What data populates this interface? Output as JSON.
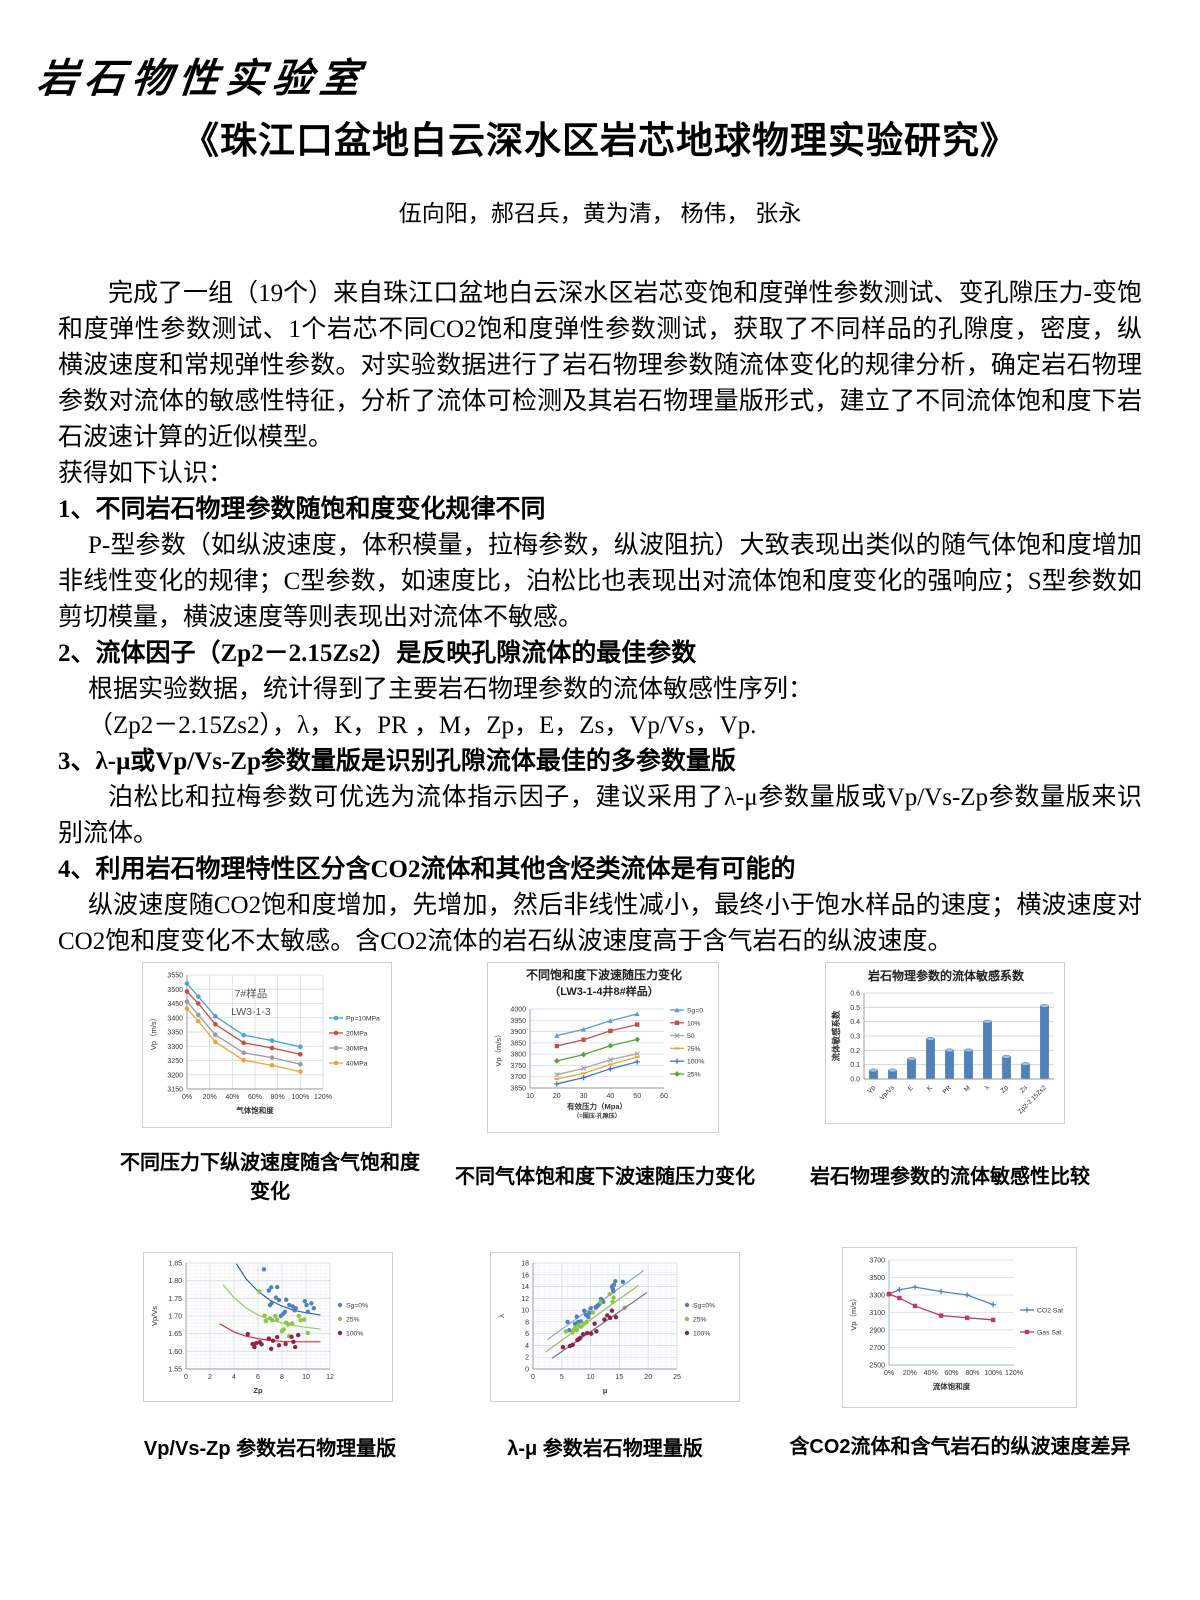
{
  "page": {
    "logo": "岩石物性实验室",
    "title": "《珠江口盆地白云深水区岩芯地球物理实验研究》",
    "authors": "伍向阳，郝召兵，黄为清， 杨伟， 张永"
  },
  "body": [
    {
      "style": "i2",
      "text": "完成了一组（19个）来自珠江口盆地白云深水区岩芯变饱和度弹性参数测试、变孔隙压力-变饱和度弹性参数测试、1个岩芯不同CO2饱和度弹性参数测试，获取了不同样品的孔隙度，密度，纵横波速度和常规弹性参数。对实验数据进行了岩石物理参数随流体变化的规律分析，确定岩石物理参数对流体的敏感性特征，分析了流体可检测及其岩石物理量版形式，建立了不同流体饱和度下岩石波速计算的近似模型。"
    },
    {
      "style": "p",
      "text": "获得如下认识："
    },
    {
      "style": "b",
      "text": "1、不同岩石物理参数随饱和度变化规律不同"
    },
    {
      "style": "i1",
      "text": "P-型参数（如纵波速度，体积模量，拉梅参数，纵波阻抗）大致表现出类似的随气体饱和度增加非线性变化的规律；C型参数，如速度比，泊松比也表现出对流体饱和度变化的强响应；S型参数如剪切模量，横波速度等则表现出对流体不敏感。"
    },
    {
      "style": "b",
      "text": "2、流体因子（Zp2－2.15Zs2）是反映孔隙流体的最佳参数"
    },
    {
      "style": "i1",
      "text": "根据实验数据，统计得到了主要岩石物理参数的流体敏感性序列："
    },
    {
      "style": "i1",
      "text": "（Zp2－2.15Zs2），λ，K，PR ，M，Zp，E，Zs，Vp/Vs，Vp."
    },
    {
      "style": "b",
      "text": "3、λ-μ或Vp/Vs-Zp参数量版是识别孔隙流体最佳的多参数量版"
    },
    {
      "style": "i2",
      "text": "泊松比和拉梅参数可优选为流体指示因子，建议采用了λ-μ参数量版或Vp/Vs-Zp参数量版来识别流体。"
    },
    {
      "style": "b",
      "text": "4、利用岩石物理特性区分含CO2流体和其他含烃类流体是有可能的"
    },
    {
      "style": "i1",
      "text": "纵波速度随CO2饱和度增加，先增加，然后非线性减小，最终小于饱水样品的速度；横波速度对CO2饱和度变化不太敏感。含CO2流体的岩石纵波速度高于含气岩石的纵波速度。"
    }
  ],
  "chart_data": [
    {
      "kind": "line",
      "caption": "不同压力下纵波速度随含气饱和度变化",
      "inner_title": [
        "7#样品",
        "LW3-1-3"
      ],
      "xlabel": "气体饱和度",
      "ylabel": "Vp（m/s）",
      "xlim": [
        0,
        120
      ],
      "xticks": [
        0,
        20,
        40,
        60,
        80,
        100,
        120
      ],
      "xtick_labels": [
        "0%",
        "20%",
        "40%",
        "60%",
        "80%",
        "100%",
        "120%"
      ],
      "ylim": [
        3150,
        3550
      ],
      "ystep": 50,
      "grid": "xy",
      "legend": true,
      "x": [
        0,
        10,
        25,
        50,
        75,
        100
      ],
      "series": [
        {
          "name": "Pp=10MPa",
          "color": "#4DA0D8",
          "marker": "circle",
          "values": [
            3520,
            3474,
            3405,
            3339,
            3320,
            3298
          ]
        },
        {
          "name": "20MPa",
          "color": "#D04A35",
          "marker": "circle",
          "values": [
            3492,
            3450,
            3377,
            3312,
            3294,
            3272
          ]
        },
        {
          "name": "30MPa",
          "color": "#9B9B9B",
          "marker": "circle",
          "values": [
            3457,
            3410,
            3340,
            3277,
            3260,
            3237
          ]
        },
        {
          "name": "40MPa",
          "color": "#F0A532",
          "marker": "circle",
          "values": [
            3432,
            3388,
            3315,
            3251,
            3233,
            3211
          ]
        }
      ]
    },
    {
      "kind": "line",
      "caption": "不同气体饱和度下波速随压力变化",
      "title": [
        "不同饱和度下波速随压力变化",
        "（LW3-1-4井8#样品）"
      ],
      "xlabel": "有效压力（Mpa）",
      "xlabel2": "（=围压-孔隙压）",
      "ylabel": "Vp（m/s）",
      "xlim": [
        10,
        60
      ],
      "xticks": [
        10,
        20,
        30,
        40,
        50,
        60
      ],
      "xtick_labels": [
        "10",
        "20",
        "30",
        "40",
        "50",
        "60"
      ],
      "ylim": [
        3650,
        4000
      ],
      "ystep": 50,
      "grid": "y",
      "legend": true,
      "x": [
        20,
        30,
        40,
        50
      ],
      "series": [
        {
          "name": "Sg=0",
          "color": "#5B9BD5",
          "marker": "triangle",
          "values": [
            3882,
            3910,
            3948,
            3978
          ]
        },
        {
          "name": "10%",
          "color": "#C0504D",
          "marker": "square",
          "values": [
            3836,
            3864,
            3903,
            3931
          ]
        },
        {
          "name": "50",
          "color": "#A6A6A6",
          "marker": "cross",
          "values": [
            3709,
            3737,
            3775,
            3802
          ]
        },
        {
          "name": "75%",
          "color": "#F0A532",
          "marker": "dash",
          "values": [
            3690,
            3715,
            3754,
            3787
          ]
        },
        {
          "name": "100%",
          "color": "#4472C4",
          "marker": "plus",
          "values": [
            3668,
            3696,
            3735,
            3766
          ]
        },
        {
          "name": "25%",
          "color": "#4EA72E",
          "marker": "diamond",
          "values": [
            3770,
            3798,
            3837,
            3865
          ]
        }
      ]
    },
    {
      "kind": "bar",
      "caption": "岩石物理参数的流体敏感性比较",
      "title": [
        "岩石物理参数的流体敏感系数"
      ],
      "ylabel": "流体敏感系数",
      "categories": [
        "Vp",
        "Vp/Vs",
        "E",
        "K",
        "PR",
        "M",
        "λ",
        "Zp",
        "Zs",
        "Zp2-2.15Zs2"
      ],
      "values": [
        0.06,
        0.06,
        0.14,
        0.28,
        0.2,
        0.2,
        0.4,
        0.155,
        0.105,
        0.51
      ],
      "ylim": [
        0,
        0.6
      ],
      "ystep": 0.1,
      "grid": "y",
      "bar_color": "#4F81BD"
    },
    {
      "kind": "scatter",
      "caption": "Vp/Vs-Zp 参数岩石物理量版",
      "xlabel": "Zp",
      "ylabel": "Vp/Vs",
      "xlim": [
        0,
        12
      ],
      "xticks": [
        0,
        2,
        4,
        6,
        8,
        10,
        12
      ],
      "xtick_labels": [
        "0",
        "2",
        "4",
        "6",
        "8",
        "10",
        "12"
      ],
      "ylim": [
        1.55,
        1.85
      ],
      "ystep": 0.05,
      "grid": "fine",
      "legend": true,
      "series": [
        {
          "name": "Sg=0%",
          "color": "#4F81BD",
          "trend_color": "#2E5FA3",
          "points": [
            [
              6.5,
              1.832
            ],
            [
              7.1,
              1.781
            ],
            [
              7.6,
              1.782
            ],
            [
              6.9,
              1.772
            ],
            [
              7.0,
              1.731
            ],
            [
              7.15,
              1.737
            ],
            [
              7.5,
              1.752
            ],
            [
              7.75,
              1.745
            ],
            [
              7.9,
              1.7
            ],
            [
              8.1,
              1.706
            ],
            [
              8.25,
              1.712
            ],
            [
              8.35,
              1.746
            ],
            [
              8.6,
              1.731
            ],
            [
              8.9,
              1.727
            ],
            [
              9.05,
              1.716
            ],
            [
              9.15,
              1.722
            ],
            [
              9.9,
              1.742
            ],
            [
              10.05,
              1.731
            ],
            [
              10.15,
              1.712
            ],
            [
              10.45,
              1.736
            ],
            [
              10.65,
              1.722
            ]
          ],
          "trend": [
            [
              4.2,
              1.848
            ],
            [
              5.0,
              1.805
            ],
            [
              6.0,
              1.77
            ],
            [
              7.0,
              1.745
            ],
            [
              8.0,
              1.728
            ],
            [
              9.0,
              1.716
            ],
            [
              10.0,
              1.709
            ],
            [
              11.2,
              1.703
            ]
          ]
        },
        {
          "name": "25%",
          "color": "#8CC63E",
          "trend_color": "#92D050",
          "points": [
            [
              6.1,
              1.77
            ],
            [
              6.55,
              1.701
            ],
            [
              6.65,
              1.686
            ],
            [
              7.0,
              1.693
            ],
            [
              7.2,
              1.688
            ],
            [
              7.45,
              1.7
            ],
            [
              7.6,
              1.69
            ],
            [
              8.0,
              1.657
            ],
            [
              8.15,
              1.662
            ],
            [
              8.35,
              1.681
            ],
            [
              8.5,
              1.676
            ],
            [
              8.6,
              1.643
            ],
            [
              8.85,
              1.679
            ],
            [
              9.4,
              1.7
            ],
            [
              9.55,
              1.688
            ],
            [
              9.85,
              1.69
            ],
            [
              10.15,
              1.652
            ]
          ],
          "trend": [
            [
              3.1,
              1.788
            ],
            [
              4.0,
              1.752
            ],
            [
              5.0,
              1.723
            ],
            [
              6.0,
              1.703
            ],
            [
              7.0,
              1.69
            ],
            [
              8.0,
              1.68
            ],
            [
              9.0,
              1.673
            ],
            [
              10.0,
              1.668
            ],
            [
              11.2,
              1.663
            ]
          ]
        },
        {
          "name": "100%",
          "color": "#8E2344",
          "trend_color": "#E03030",
          "points": [
            [
              5.15,
              1.649
            ],
            [
              5.55,
              1.621
            ],
            [
              5.7,
              1.612
            ],
            [
              5.85,
              1.623
            ],
            [
              6.15,
              1.626
            ],
            [
              6.3,
              1.62
            ],
            [
              6.9,
              1.636
            ],
            [
              7.1,
              1.607
            ],
            [
              7.25,
              1.63
            ],
            [
              7.6,
              1.64
            ],
            [
              7.75,
              1.617
            ],
            [
              8.3,
              1.621
            ],
            [
              8.8,
              1.641
            ],
            [
              8.95,
              1.627
            ],
            [
              9.1,
              1.612
            ],
            [
              9.35,
              1.646
            ]
          ],
          "trend": [
            [
              2.8,
              1.678
            ],
            [
              4.0,
              1.655
            ],
            [
              5.0,
              1.643
            ],
            [
              6.0,
              1.636
            ],
            [
              7.0,
              1.631
            ],
            [
              8.0,
              1.628
            ],
            [
              9.0,
              1.627
            ],
            [
              10.0,
              1.627
            ],
            [
              11.2,
              1.627
            ]
          ]
        }
      ]
    },
    {
      "kind": "scatter",
      "caption": "λ-μ 参数岩石物理量版",
      "xlabel": "μ",
      "ylabel": "λ",
      "xlim": [
        0,
        25
      ],
      "xticks": [
        0,
        5,
        10,
        15,
        20,
        25
      ],
      "xtick_labels": [
        "0",
        "5",
        "10",
        "15",
        "20",
        "25"
      ],
      "ylim": [
        0,
        18
      ],
      "ystep": 2,
      "grid": "fine",
      "legend": true,
      "series": [
        {
          "name": "Sg=0%",
          "color": "#4F81BD",
          "trend_color": "#7BA7D7",
          "points": [
            [
              6.0,
              8.0
            ],
            [
              6.3,
              6.6
            ],
            [
              7.3,
              7.7
            ],
            [
              7.6,
              8.9
            ],
            [
              7.85,
              8.0
            ],
            [
              8.3,
              8.1
            ],
            [
              8.9,
              9.9
            ],
            [
              9.2,
              9.2
            ],
            [
              9.6,
              8.8
            ],
            [
              9.8,
              9.5
            ],
            [
              10.0,
              10.3
            ],
            [
              10.9,
              10.4
            ],
            [
              11.2,
              10.7
            ],
            [
              11.5,
              11.0
            ],
            [
              11.8,
              11.9
            ],
            [
              12.0,
              11.7
            ],
            [
              12.2,
              11.4
            ],
            [
              13.7,
              14.0
            ],
            [
              13.85,
              13.6
            ],
            [
              13.95,
              13.2
            ],
            [
              14.05,
              14.3
            ],
            [
              14.3,
              14.9
            ],
            [
              15.6,
              14.8
            ]
          ],
          "trend": [
            [
              2.5,
              5.0
            ],
            [
              19.2,
              16.7
            ]
          ]
        },
        {
          "name": "25%",
          "color": "#8CC63E",
          "trend_color": "#9BBB59",
          "points": [
            [
              5.7,
              6.4
            ],
            [
              6.9,
              6.2
            ],
            [
              7.1,
              6.7
            ],
            [
              7.3,
              7.0
            ],
            [
              7.6,
              6.6
            ],
            [
              7.9,
              7.4
            ],
            [
              8.4,
              7.2
            ],
            [
              8.9,
              7.7
            ],
            [
              9.3,
              8.0
            ],
            [
              10.4,
              9.6
            ],
            [
              11.7,
              11.4
            ],
            [
              13.3,
              12.7
            ],
            [
              13.8,
              11.4
            ],
            [
              14.0,
              12.1
            ],
            [
              15.9,
              10.4
            ]
          ],
          "trend": [
            [
              2.2,
              2.9
            ],
            [
              18.3,
              14.2
            ]
          ]
        },
        {
          "name": "100%",
          "color": "#8E2344",
          "trend_color": "#8064A2",
          "points": [
            [
              5.2,
              3.7
            ],
            [
              6.4,
              3.9
            ],
            [
              6.9,
              4.1
            ],
            [
              7.7,
              4.9
            ],
            [
              8.0,
              5.1
            ],
            [
              8.2,
              5.3
            ],
            [
              8.7,
              5.9
            ],
            [
              9.4,
              6.1
            ],
            [
              10.1,
              6.0
            ],
            [
              10.7,
              7.7
            ],
            [
              11.0,
              6.4
            ],
            [
              12.4,
              8.4
            ],
            [
              12.9,
              9.1
            ],
            [
              13.4,
              8.7
            ],
            [
              13.7,
              9.9
            ],
            [
              14.4,
              8.8
            ]
          ],
          "trend": [
            [
              3.3,
              1.8
            ],
            [
              19.8,
              13.0
            ]
          ]
        }
      ]
    },
    {
      "kind": "line",
      "caption": "含CO2流体和含气岩石的纵波速度差异",
      "xlabel": "流体饱和度",
      "ylabel": "Vp（m/s）",
      "xlim": [
        0,
        120
      ],
      "xticks": [
        0,
        20,
        40,
        60,
        80,
        100,
        120
      ],
      "xtick_labels": [
        "0%",
        "20%",
        "40%",
        "60%",
        "80%",
        "100%",
        "120%"
      ],
      "ylim": [
        2500,
        3700
      ],
      "ystep": 200,
      "grid": "y",
      "legend": true,
      "axis_color": "#95B3D7",
      "x": [
        0,
        10,
        25,
        50,
        75,
        100
      ],
      "series": [
        {
          "name": "CO2 Sat",
          "color": "#4F81BD",
          "marker": "plus",
          "values": [
            3310,
            3360,
            3390,
            3340,
            3300,
            3190
          ]
        },
        {
          "name": "Gas Sat",
          "color": "#C03A5C",
          "marker": "square",
          "values": [
            3310,
            3265,
            3175,
            3065,
            3040,
            3015
          ]
        }
      ]
    }
  ]
}
